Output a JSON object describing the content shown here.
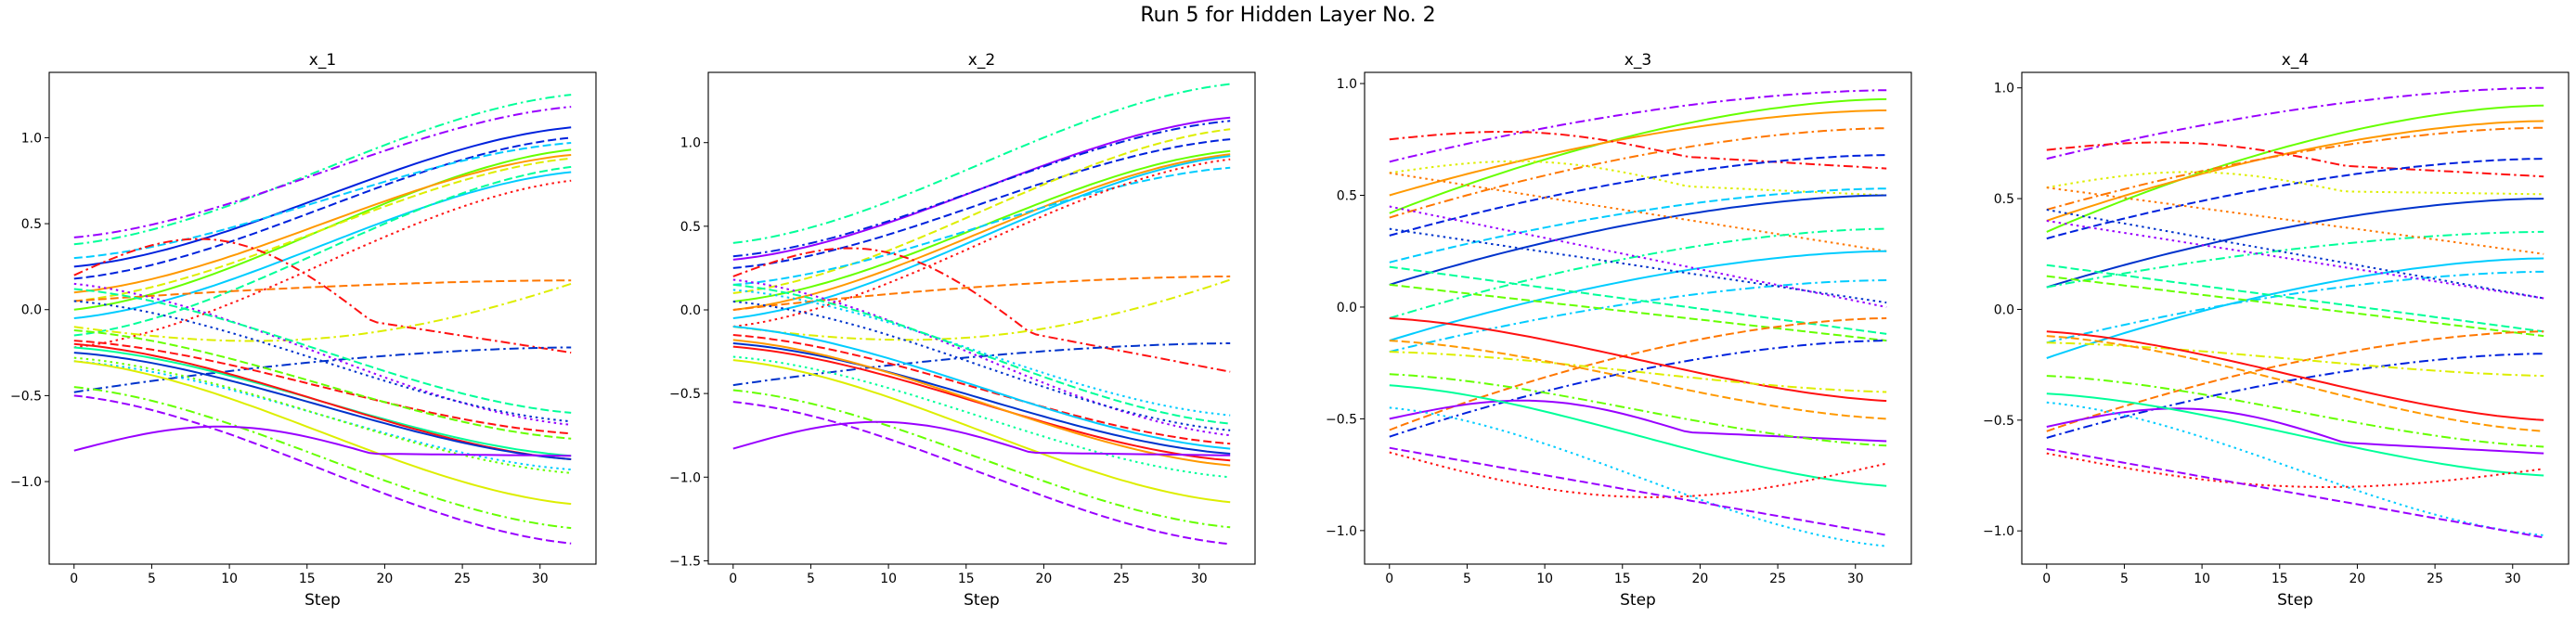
{
  "figure_title": "Run 5 for Hidden Layer No. 2",
  "chart_data": [
    {
      "type": "line",
      "title": "x_1",
      "xlabel": "Step",
      "ylabel": "",
      "xlim": [
        -1.6,
        33.6
      ],
      "ylim": [
        -1.48,
        1.38
      ],
      "xticks": [
        0,
        5,
        10,
        15,
        20,
        25,
        30
      ],
      "yticks": [
        -1.0,
        -0.5,
        0.0,
        0.5,
        1.0
      ],
      "ytick_labels": [
        "−1.0",
        "−0.5",
        "0.0",
        "0.5",
        "1.0"
      ],
      "grid": false,
      "series": [
        {
          "color": "#00ff99",
          "style": "dashdot",
          "start": 0.38,
          "end": 1.25,
          "shape": "s"
        },
        {
          "color": "#9900ff",
          "style": "dashdot",
          "start": 0.42,
          "end": 1.18,
          "shape": "s"
        },
        {
          "color": "#0022dd",
          "style": "solid",
          "start": 0.25,
          "end": 1.06,
          "shape": "s"
        },
        {
          "color": "#0022dd",
          "style": "dashed",
          "start": 0.18,
          "end": 1.0,
          "shape": "s"
        },
        {
          "color": "#00ccff",
          "style": "dashed",
          "start": 0.3,
          "end": 0.97,
          "shape": "s"
        },
        {
          "color": "#66ff00",
          "style": "solid",
          "start": 0.0,
          "end": 0.93,
          "shape": "s"
        },
        {
          "color": "#ff9900",
          "style": "solid",
          "start": 0.1,
          "end": 0.9,
          "shape": "s"
        },
        {
          "color": "#ddee00",
          "style": "dashed",
          "start": 0.05,
          "end": 0.88,
          "shape": "s"
        },
        {
          "color": "#00ccff",
          "style": "solid",
          "start": -0.05,
          "end": 0.8,
          "shape": "s"
        },
        {
          "color": "#00ff99",
          "style": "dashed",
          "start": -0.15,
          "end": 0.83,
          "shape": "s"
        },
        {
          "color": "#ff1111",
          "style": "dotted",
          "start": -0.22,
          "end": 0.75,
          "shape": "s"
        },
        {
          "color": "#ff1111",
          "style": "dashdot",
          "start": 0.2,
          "end": -0.25,
          "shape": "hump",
          "peak": 0.4
        },
        {
          "color": "#ff7700",
          "style": "dashed",
          "start": 0.05,
          "end": 0.17,
          "shape": "sat"
        },
        {
          "color": "#ddee00",
          "style": "dashdot",
          "start": -0.1,
          "end": 0.15,
          "shape": "hump2"
        },
        {
          "color": "#0033cc",
          "style": "dashdot",
          "start": -0.48,
          "end": -0.22,
          "shape": "sat"
        },
        {
          "color": "#9900ff",
          "style": "dotted",
          "start": 0.15,
          "end": -0.67,
          "shape": "s"
        },
        {
          "color": "#00ff99",
          "style": "dashed",
          "start": 0.12,
          "end": -0.6,
          "shape": "s"
        },
        {
          "color": "#0033cc",
          "style": "dotted",
          "start": 0.05,
          "end": -0.65,
          "shape": "s"
        },
        {
          "color": "#ff1111",
          "style": "dashed",
          "start": -0.18,
          "end": -0.72,
          "shape": "s"
        },
        {
          "color": "#66ff00",
          "style": "dashed",
          "start": -0.12,
          "end": -0.75,
          "shape": "s"
        },
        {
          "color": "#00ff99",
          "style": "solid",
          "start": -0.22,
          "end": -0.85,
          "shape": "s"
        },
        {
          "color": "#ff1111",
          "style": "solid",
          "start": -0.2,
          "end": -0.87,
          "shape": "s"
        },
        {
          "color": "#0033cc",
          "style": "solid",
          "start": -0.25,
          "end": -0.87,
          "shape": "s"
        },
        {
          "color": "#00ccff",
          "style": "dotted",
          "start": -0.3,
          "end": -0.93,
          "shape": "s"
        },
        {
          "color": "#66ff00",
          "style": "dotted",
          "start": -0.28,
          "end": -0.95,
          "shape": "s"
        },
        {
          "color": "#ddee00",
          "style": "solid",
          "start": -0.3,
          "end": -1.13,
          "shape": "s"
        },
        {
          "color": "#66ff00",
          "style": "dashdot",
          "start": -0.45,
          "end": -1.27,
          "shape": "s"
        },
        {
          "color": "#9900ff",
          "style": "dashed",
          "start": -0.5,
          "end": -1.36,
          "shape": "s"
        },
        {
          "color": "#9900ff",
          "style": "solid",
          "start": -0.82,
          "end": -0.85,
          "shape": "hump",
          "peak": -0.68
        }
      ]
    },
    {
      "type": "line",
      "title": "x_2",
      "xlabel": "Step",
      "ylabel": "",
      "xlim": [
        -1.6,
        33.6
      ],
      "ylim": [
        -1.52,
        1.42
      ],
      "xticks": [
        0,
        5,
        10,
        15,
        20,
        25,
        30
      ],
      "yticks": [
        -1.5,
        -1.0,
        -0.5,
        0.0,
        0.5,
        1.0
      ],
      "ytick_labels": [
        "−1.5",
        "−1.0",
        "−0.5",
        "0.0",
        "0.5",
        "1.0"
      ],
      "grid": false,
      "series": [
        {
          "color": "#00ff99",
          "style": "dashdot",
          "start": 0.4,
          "end": 1.35,
          "shape": "s"
        },
        {
          "color": "#9900ff",
          "style": "solid",
          "start": 0.3,
          "end": 1.15,
          "shape": "s"
        },
        {
          "color": "#0022dd",
          "style": "dashdot",
          "start": 0.32,
          "end": 1.13,
          "shape": "s"
        },
        {
          "color": "#0022dd",
          "style": "dashed",
          "start": 0.25,
          "end": 1.02,
          "shape": "s"
        },
        {
          "color": "#ddee00",
          "style": "dashed",
          "start": 0.1,
          "end": 1.08,
          "shape": "s"
        },
        {
          "color": "#66ff00",
          "style": "solid",
          "start": 0.05,
          "end": 0.95,
          "shape": "s"
        },
        {
          "color": "#ff9900",
          "style": "solid",
          "start": 0.0,
          "end": 0.93,
          "shape": "s"
        },
        {
          "color": "#00ccff",
          "style": "solid",
          "start": -0.05,
          "end": 0.92,
          "shape": "s"
        },
        {
          "color": "#00ccff",
          "style": "dashed",
          "start": 0.15,
          "end": 0.85,
          "shape": "s"
        },
        {
          "color": "#ff1111",
          "style": "dotted",
          "start": -0.1,
          "end": 0.9,
          "shape": "s"
        },
        {
          "color": "#ff1111",
          "style": "dashdot",
          "start": 0.2,
          "end": -0.37,
          "shape": "hump",
          "peak": 0.35
        },
        {
          "color": "#ff7700",
          "style": "dashed",
          "start": 0.0,
          "end": 0.2,
          "shape": "sat"
        },
        {
          "color": "#ddee00",
          "style": "dashdot",
          "start": -0.1,
          "end": 0.18,
          "shape": "hump2"
        },
        {
          "color": "#0033cc",
          "style": "dashdot",
          "start": -0.45,
          "end": -0.2,
          "shape": "sat"
        },
        {
          "color": "#9900ff",
          "style": "dotted",
          "start": 0.18,
          "end": -0.75,
          "shape": "s"
        },
        {
          "color": "#00ccff",
          "style": "dotted",
          "start": 0.12,
          "end": -0.63,
          "shape": "s"
        },
        {
          "color": "#00ff99",
          "style": "dashed",
          "start": 0.15,
          "end": -0.68,
          "shape": "s"
        },
        {
          "color": "#0033cc",
          "style": "dotted",
          "start": 0.05,
          "end": -0.72,
          "shape": "s"
        },
        {
          "color": "#ff1111",
          "style": "dashed",
          "start": -0.15,
          "end": -0.8,
          "shape": "s"
        },
        {
          "color": "#00ccff",
          "style": "solid",
          "start": -0.1,
          "end": -0.83,
          "shape": "s"
        },
        {
          "color": "#0033cc",
          "style": "solid",
          "start": -0.2,
          "end": -0.86,
          "shape": "s"
        },
        {
          "color": "#ff1111",
          "style": "solid",
          "start": -0.22,
          "end": -0.9,
          "shape": "s"
        },
        {
          "color": "#ff9900",
          "style": "solid",
          "start": -0.18,
          "end": -0.93,
          "shape": "s"
        },
        {
          "color": "#00ff99",
          "style": "dotted",
          "start": -0.28,
          "end": -1.0,
          "shape": "s"
        },
        {
          "color": "#ddee00",
          "style": "solid",
          "start": -0.3,
          "end": -1.15,
          "shape": "s"
        },
        {
          "color": "#66ff00",
          "style": "dashdot",
          "start": -0.48,
          "end": -1.3,
          "shape": "s"
        },
        {
          "color": "#9900ff",
          "style": "dashed",
          "start": -0.55,
          "end": -1.4,
          "shape": "s"
        },
        {
          "color": "#9900ff",
          "style": "solid",
          "start": -0.83,
          "end": -0.87,
          "shape": "hump",
          "peak": -0.67
        }
      ]
    },
    {
      "type": "line",
      "title": "x_3",
      "xlabel": "Step",
      "ylabel": "",
      "xlim": [
        -1.6,
        33.6
      ],
      "ylim": [
        -1.15,
        1.05
      ],
      "xticks": [
        0,
        5,
        10,
        15,
        20,
        25,
        30
      ],
      "yticks": [
        -1.0,
        -0.5,
        0.0,
        0.5,
        1.0
      ],
      "ytick_labels": [
        "−1.0",
        "−0.5",
        "0.0",
        "0.5",
        "1.0"
      ],
      "grid": false,
      "series": [
        {
          "color": "#9900ff",
          "style": "dashdot",
          "start": 0.65,
          "end": 0.97,
          "shape": "sat"
        },
        {
          "color": "#66ff00",
          "style": "solid",
          "start": 0.42,
          "end": 0.93,
          "shape": "sat"
        },
        {
          "color": "#ff9900",
          "style": "solid",
          "start": 0.5,
          "end": 0.88,
          "shape": "sat"
        },
        {
          "color": "#ff7700",
          "style": "dashdot",
          "start": 0.4,
          "end": 0.8,
          "shape": "sat"
        },
        {
          "color": "#ff1111",
          "style": "dashdot",
          "start": 0.75,
          "end": 0.62,
          "shape": "hump",
          "peak": 0.78
        },
        {
          "color": "#0022dd",
          "style": "dashed",
          "start": 0.32,
          "end": 0.68,
          "shape": "sat"
        },
        {
          "color": "#ddee00",
          "style": "dotted",
          "start": 0.6,
          "end": 0.5,
          "shape": "hump",
          "peak": 0.65
        },
        {
          "color": "#00ccff",
          "style": "dashed",
          "start": 0.2,
          "end": 0.53,
          "shape": "sat"
        },
        {
          "color": "#0033cc",
          "style": "solid",
          "start": 0.1,
          "end": 0.5,
          "shape": "sat"
        },
        {
          "color": "#ff7700",
          "style": "dotted",
          "start": 0.6,
          "end": 0.25,
          "shape": "lin"
        },
        {
          "color": "#00ff99",
          "style": "dashdot",
          "start": -0.05,
          "end": 0.35,
          "shape": "sat"
        },
        {
          "color": "#00ccff",
          "style": "solid",
          "start": -0.15,
          "end": 0.25,
          "shape": "sat"
        },
        {
          "color": "#00ccff",
          "style": "dashdot",
          "start": -0.2,
          "end": 0.12,
          "shape": "sat"
        },
        {
          "color": "#0033cc",
          "style": "dotted",
          "start": 0.35,
          "end": 0.02,
          "shape": "lin"
        },
        {
          "color": "#9900ff",
          "style": "dotted",
          "start": 0.45,
          "end": 0.0,
          "shape": "lin"
        },
        {
          "color": "#00ff99",
          "style": "dashed",
          "start": 0.18,
          "end": -0.12,
          "shape": "lin"
        },
        {
          "color": "#66ff00",
          "style": "dashed",
          "start": 0.1,
          "end": -0.15,
          "shape": "lin"
        },
        {
          "color": "#0022dd",
          "style": "dashdot",
          "start": -0.58,
          "end": -0.15,
          "shape": "sat"
        },
        {
          "color": "#ff7700",
          "style": "dashed",
          "start": -0.55,
          "end": -0.05,
          "shape": "sat"
        },
        {
          "color": "#ff1111",
          "style": "solid",
          "start": -0.05,
          "end": -0.42,
          "shape": "s"
        },
        {
          "color": "#ddee00",
          "style": "dashdot",
          "start": -0.2,
          "end": -0.38,
          "shape": "s"
        },
        {
          "color": "#ff9900",
          "style": "dashed",
          "start": -0.15,
          "end": -0.5,
          "shape": "s"
        },
        {
          "color": "#9900ff",
          "style": "solid",
          "start": -0.5,
          "end": -0.6,
          "shape": "hump",
          "peak": -0.42
        },
        {
          "color": "#66ff00",
          "style": "dashdot",
          "start": -0.3,
          "end": -0.62,
          "shape": "s"
        },
        {
          "color": "#00ff99",
          "style": "solid",
          "start": -0.35,
          "end": -0.8,
          "shape": "s"
        },
        {
          "color": "#ff1111",
          "style": "dotted",
          "start": -0.65,
          "end": -0.7,
          "shape": "dip",
          "peak": -0.85
        },
        {
          "color": "#00ccff",
          "style": "dotted",
          "start": -0.45,
          "end": -1.07,
          "shape": "s"
        },
        {
          "color": "#9900ff",
          "style": "dashed",
          "start": -0.63,
          "end": -1.02,
          "shape": "lin"
        }
      ]
    },
    {
      "type": "line",
      "title": "x_4",
      "xlabel": "Step",
      "ylabel": "",
      "xlim": [
        -1.6,
        33.6
      ],
      "ylim": [
        -1.15,
        1.07
      ],
      "xticks": [
        0,
        5,
        10,
        15,
        20,
        25,
        30
      ],
      "yticks": [
        -1.0,
        -0.5,
        0.0,
        0.5,
        1.0
      ],
      "ytick_labels": [
        "−1.0",
        "−0.5",
        "0.0",
        "0.5",
        "1.0"
      ],
      "grid": false,
      "series": [
        {
          "color": "#9900ff",
          "style": "dashdot",
          "start": 0.68,
          "end": 1.0,
          "shape": "sat"
        },
        {
          "color": "#66ff00",
          "style": "solid",
          "start": 0.35,
          "end": 0.92,
          "shape": "sat"
        },
        {
          "color": "#ff9900",
          "style": "solid",
          "start": 0.4,
          "end": 0.85,
          "shape": "sat"
        },
        {
          "color": "#ff7700",
          "style": "dashdot",
          "start": 0.45,
          "end": 0.82,
          "shape": "sat"
        },
        {
          "color": "#ff1111",
          "style": "dashdot",
          "start": 0.72,
          "end": 0.6,
          "shape": "hump",
          "peak": 0.75
        },
        {
          "color": "#0022dd",
          "style": "dashed",
          "start": 0.32,
          "end": 0.68,
          "shape": "sat"
        },
        {
          "color": "#ddee00",
          "style": "dotted",
          "start": 0.55,
          "end": 0.52,
          "shape": "hump",
          "peak": 0.62
        },
        {
          "color": "#0033cc",
          "style": "solid",
          "start": 0.1,
          "end": 0.5,
          "shape": "sat"
        },
        {
          "color": "#00ff99",
          "style": "dashdot",
          "start": 0.1,
          "end": 0.35,
          "shape": "sat"
        },
        {
          "color": "#ff7700",
          "style": "dotted",
          "start": 0.55,
          "end": 0.25,
          "shape": "lin"
        },
        {
          "color": "#00ccff",
          "style": "solid",
          "start": -0.22,
          "end": 0.23,
          "shape": "sat"
        },
        {
          "color": "#00ccff",
          "style": "dashdot",
          "start": -0.15,
          "end": 0.17,
          "shape": "sat"
        },
        {
          "color": "#0033cc",
          "style": "dotted",
          "start": 0.45,
          "end": 0.05,
          "shape": "lin"
        },
        {
          "color": "#9900ff",
          "style": "dotted",
          "start": 0.4,
          "end": 0.05,
          "shape": "lin"
        },
        {
          "color": "#00ff99",
          "style": "dashed",
          "start": 0.2,
          "end": -0.1,
          "shape": "lin"
        },
        {
          "color": "#66ff00",
          "style": "dashed",
          "start": 0.15,
          "end": -0.12,
          "shape": "lin"
        },
        {
          "color": "#0022dd",
          "style": "dashdot",
          "start": -0.58,
          "end": -0.2,
          "shape": "sat"
        },
        {
          "color": "#ff7700",
          "style": "dashed",
          "start": -0.55,
          "end": -0.1,
          "shape": "sat"
        },
        {
          "color": "#ddee00",
          "style": "dashdot",
          "start": -0.15,
          "end": -0.3,
          "shape": "s"
        },
        {
          "color": "#ff1111",
          "style": "solid",
          "start": -0.1,
          "end": -0.5,
          "shape": "s"
        },
        {
          "color": "#ff9900",
          "style": "dashed",
          "start": -0.12,
          "end": -0.55,
          "shape": "s"
        },
        {
          "color": "#9900ff",
          "style": "solid",
          "start": -0.53,
          "end": -0.65,
          "shape": "hump",
          "peak": -0.45
        },
        {
          "color": "#66ff00",
          "style": "dashdot",
          "start": -0.3,
          "end": -0.62,
          "shape": "s"
        },
        {
          "color": "#00ff99",
          "style": "solid",
          "start": -0.38,
          "end": -0.75,
          "shape": "s"
        },
        {
          "color": "#ff1111",
          "style": "dotted",
          "start": -0.65,
          "end": -0.72,
          "shape": "dip",
          "peak": -0.8
        },
        {
          "color": "#00ccff",
          "style": "dotted",
          "start": -0.42,
          "end": -1.02,
          "shape": "s"
        },
        {
          "color": "#9900ff",
          "style": "dashed",
          "start": -0.63,
          "end": -1.03,
          "shape": "lin"
        }
      ]
    }
  ]
}
